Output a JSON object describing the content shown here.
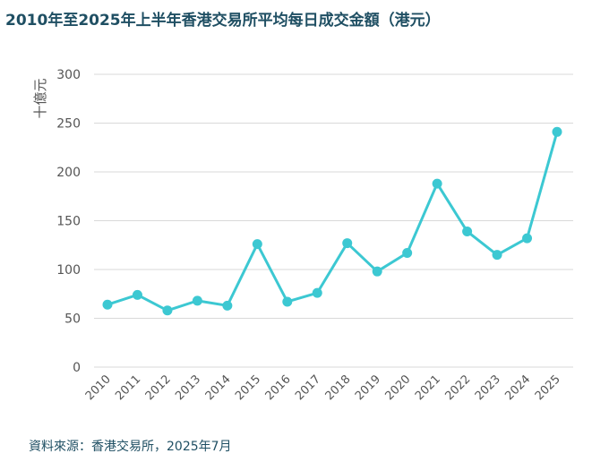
{
  "title": "2010年至2025年上半年香港交易所平均每日成交金額（港元）",
  "source": "資料來源：香港交易所，2025年7月",
  "colors": {
    "line": "#3cc8d2",
    "title": "#1f4f63",
    "grid": "#d9d9d9",
    "tick": "#555555"
  },
  "chart_data": {
    "type": "line",
    "title": "2010年至2025年上半年香港交易所平均每日成交金額（港元）",
    "ylabel": "十億元",
    "xlabel": "",
    "ylim": [
      0,
      300
    ],
    "yticks": [
      0,
      50,
      100,
      150,
      200,
      250,
      300
    ],
    "grid": true,
    "categories": [
      "2010",
      "2011",
      "2012",
      "2013",
      "2014",
      "2015",
      "2016",
      "2017",
      "2018",
      "2019",
      "2020",
      "2021",
      "2022",
      "2023",
      "2024",
      "2025"
    ],
    "series": [
      {
        "values": [
          64,
          74,
          58,
          68,
          63,
          126,
          67,
          76,
          127,
          98,
          117,
          188,
          139,
          115,
          132,
          241
        ]
      }
    ]
  }
}
